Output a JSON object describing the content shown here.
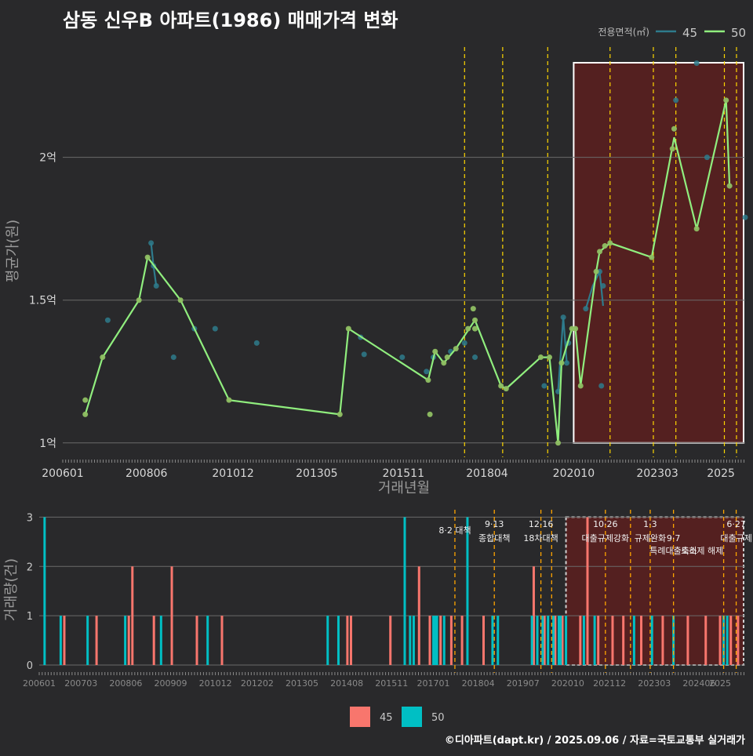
{
  "title": "삼동 신우B 아파트(1986) 매매가격 변화",
  "footer": "©디아파트(dapt.kr) / 2025.09.06 / 자료=국토교통부 실거래가",
  "colors": {
    "s45_price": "#2e7b8c",
    "s50_price": "#90ee7e",
    "s45_vol": "#f8766d",
    "s50_vol": "#00bfc4",
    "policy_line": "#ffd700",
    "policy_line_bottom": "#ffa500",
    "highlight_fill": "#5c1f1f",
    "grid": "#6a6a6a"
  },
  "chart_data": [
    {
      "type": "line",
      "id": "price",
      "ylabel": "평균가(원)",
      "xlabel": "거래년월",
      "x_ticks": [
        "200601",
        "200806",
        "201012",
        "201305",
        "201511",
        "201804",
        "202010",
        "202303",
        "2025"
      ],
      "y_ticks": [
        {
          "value": 1.0,
          "label": "1억"
        },
        {
          "value": 1.5,
          "label": "1.5억"
        },
        {
          "value": 2.0,
          "label": "2억"
        }
      ],
      "ylim": [
        0.95,
        2.4
      ],
      "xlim": [
        2006.0,
        2025.7
      ],
      "legend": {
        "title": "전용면적(㎡)",
        "placement": "top-right",
        "entries": [
          "45",
          "50"
        ]
      },
      "highlight_range": [
        2020.75,
        2025.7
      ],
      "policy_lines": [
        2017.6,
        2018.7,
        2020.0,
        2021.8,
        2023.05,
        2023.7,
        2025.1,
        2025.45
      ],
      "series": [
        {
          "name": "45",
          "points": [
            [
              2008.55,
              1.7
            ],
            [
              2008.62,
              1.62
            ],
            [
              2008.7,
              1.55
            ],
            [
              2007.3,
              1.43
            ],
            [
              2009.8,
              1.4
            ],
            [
              2009.2,
              1.3
            ],
            [
              2010.4,
              1.4
            ],
            [
              2011.6,
              1.35
            ],
            [
              2014.6,
              1.37
            ],
            [
              2014.7,
              1.31
            ],
            [
              2016.5,
              1.25
            ],
            [
              2015.8,
              1.3
            ],
            [
              2016.7,
              1.3
            ],
            [
              2017.2,
              1.32
            ],
            [
              2017.6,
              1.35
            ],
            [
              2017.9,
              1.3
            ],
            [
              2019.9,
              1.2
            ],
            [
              2020.3,
              1.18
            ],
            [
              2020.45,
              1.44
            ],
            [
              2020.55,
              1.28
            ],
            [
              2020.6,
              1.35
            ],
            [
              2021.1,
              1.47
            ],
            [
              2021.5,
              1.6
            ],
            [
              2021.6,
              1.55
            ],
            [
              2021.55,
              1.2
            ],
            [
              2023.7,
              2.2
            ],
            [
              2024.3,
              2.33
            ],
            [
              2025.7,
              1.79
            ],
            [
              2024.6,
              2.0
            ]
          ],
          "line": [
            [
              2008.55,
              1.7
            ],
            [
              2008.62,
              1.62
            ],
            [
              2008.7,
              1.55
            ]
          ],
          "line2": [
            [
              2020.3,
              1.18
            ],
            [
              2020.45,
              1.44
            ],
            [
              2020.55,
              1.28
            ]
          ],
          "line3": [
            [
              2021.1,
              1.47
            ],
            [
              2021.3,
              1.55
            ],
            [
              2021.5,
              1.6
            ],
            [
              2021.6,
              1.48
            ]
          ]
        },
        {
          "name": "50",
          "points": [
            [
              2006.65,
              1.1
            ],
            [
              2006.65,
              1.15
            ],
            [
              2007.15,
              1.3
            ],
            [
              2008.2,
              1.5
            ],
            [
              2008.45,
              1.65
            ],
            [
              2009.4,
              1.5
            ],
            [
              2010.8,
              1.15
            ],
            [
              2014.0,
              1.1
            ],
            [
              2014.25,
              1.4
            ],
            [
              2016.55,
              1.22
            ],
            [
              2016.75,
              1.32
            ],
            [
              2017.0,
              1.28
            ],
            [
              2017.1,
              1.3
            ],
            [
              2017.35,
              1.33
            ],
            [
              2017.7,
              1.4
            ],
            [
              2017.85,
              1.47
            ],
            [
              2017.9,
              1.43
            ],
            [
              2017.9,
              1.4
            ],
            [
              2018.65,
              1.2
            ],
            [
              2018.8,
              1.19
            ],
            [
              2019.8,
              1.3
            ],
            [
              2020.05,
              1.3
            ],
            [
              2020.3,
              1.0
            ],
            [
              2020.4,
              1.28
            ],
            [
              2020.7,
              1.4
            ],
            [
              2020.8,
              1.4
            ],
            [
              2020.95,
              1.2
            ],
            [
              2021.4,
              1.6
            ],
            [
              2021.5,
              1.67
            ],
            [
              2021.65,
              1.69
            ],
            [
              2021.8,
              1.7
            ],
            [
              2023.0,
              1.65
            ],
            [
              2023.65,
              2.1
            ],
            [
              2023.6,
              2.03
            ],
            [
              2024.3,
              1.75
            ],
            [
              2025.15,
              2.2
            ],
            [
              2025.25,
              1.9
            ],
            [
              2016.6,
              1.1
            ]
          ],
          "line": [
            [
              2006.65,
              1.1
            ],
            [
              2007.15,
              1.3
            ],
            [
              2008.2,
              1.5
            ],
            [
              2008.45,
              1.65
            ],
            [
              2009.4,
              1.5
            ],
            [
              2010.8,
              1.15
            ],
            [
              2014.0,
              1.1
            ],
            [
              2014.25,
              1.4
            ],
            [
              2016.55,
              1.22
            ],
            [
              2016.75,
              1.32
            ],
            [
              2017.0,
              1.28
            ],
            [
              2017.35,
              1.33
            ],
            [
              2017.9,
              1.43
            ],
            [
              2018.65,
              1.2
            ],
            [
              2018.8,
              1.19
            ],
            [
              2019.8,
              1.3
            ],
            [
              2020.05,
              1.3
            ],
            [
              2020.3,
              1.0
            ],
            [
              2020.4,
              1.28
            ],
            [
              2020.7,
              1.4
            ],
            [
              2020.8,
              1.4
            ],
            [
              2020.95,
              1.2
            ],
            [
              2021.4,
              1.6
            ],
            [
              2021.5,
              1.67
            ],
            [
              2021.8,
              1.7
            ],
            [
              2023.0,
              1.65
            ],
            [
              2023.65,
              2.07
            ],
            [
              2024.3,
              1.75
            ],
            [
              2025.15,
              2.2
            ],
            [
              2025.25,
              1.9
            ]
          ]
        }
      ]
    },
    {
      "type": "bar",
      "id": "volume",
      "ylabel": "거래량(건)",
      "x_ticks": [
        "200601",
        "200703",
        "200806",
        "200909",
        "201012",
        "201202",
        "201305",
        "201408",
        "201511",
        "201701",
        "201804",
        "201907",
        "202010",
        "202112",
        "202303",
        "202406",
        "2025"
      ],
      "y_ticks": [
        0,
        1,
        2,
        3
      ],
      "ylim": [
        0,
        3.15
      ],
      "xlim": [
        2006.0,
        2025.7
      ],
      "legend": {
        "placement": "bottom",
        "entries": [
          "45",
          "50"
        ]
      },
      "highlight_range": [
        2020.7,
        2025.7
      ],
      "policy_lines": [
        2017.6,
        2018.7,
        2020.0,
        2020.3,
        2021.8,
        2022.5,
        2023.05,
        2023.7,
        2025.1,
        2025.45
      ],
      "annotations": [
        {
          "x": 2017.6,
          "level": 0,
          "label": "8·2 대책"
        },
        {
          "x": 2018.7,
          "level": 1,
          "label": "9·13"
        },
        {
          "x": 2018.7,
          "level": 2,
          "label": "종합대책"
        },
        {
          "x": 2020.0,
          "level": 1,
          "label": "12·16"
        },
        {
          "x": 2020.0,
          "level": 2,
          "label": "18차대책"
        },
        {
          "x": 2021.8,
          "level": 1,
          "label": "10·26"
        },
        {
          "x": 2021.8,
          "level": 2,
          "label": "대출규제강화"
        },
        {
          "x": 2023.05,
          "level": 1,
          "label": "1·3"
        },
        {
          "x": 2023.05,
          "level": 2,
          "label": "규제완화"
        },
        {
          "x": 2023.7,
          "level": 2,
          "label": "9·7"
        },
        {
          "x": 2023.7,
          "level": 3,
          "label": "특례대출축소"
        },
        {
          "x": 2024.5,
          "level": 3,
          "label": "토허제 해제"
        },
        {
          "x": 2025.45,
          "level": 1,
          "label": "6·27"
        },
        {
          "x": 2025.45,
          "level": 2,
          "label": "대출규제"
        }
      ],
      "series": [
        {
          "name": "45",
          "bars": [
            [
              2006.7,
              1
            ],
            [
              2007.6,
              1
            ],
            [
              2008.5,
              1
            ],
            [
              2008.6,
              2
            ],
            [
              2009.2,
              1
            ],
            [
              2009.7,
              2
            ],
            [
              2010.4,
              1
            ],
            [
              2011.1,
              1
            ],
            [
              2014.6,
              1
            ],
            [
              2014.7,
              1
            ],
            [
              2015.8,
              1
            ],
            [
              2016.2,
              1
            ],
            [
              2016.6,
              2
            ],
            [
              2016.9,
              1
            ],
            [
              2017.2,
              1
            ],
            [
              2017.5,
              1
            ],
            [
              2017.8,
              1
            ],
            [
              2018.4,
              1
            ],
            [
              2019.8,
              2
            ],
            [
              2020.1,
              1
            ],
            [
              2020.4,
              1
            ],
            [
              2020.6,
              1
            ],
            [
              2021.1,
              1
            ],
            [
              2021.3,
              3
            ],
            [
              2021.6,
              1
            ],
            [
              2022.0,
              1
            ],
            [
              2022.3,
              1
            ],
            [
              2022.8,
              1
            ],
            [
              2023.4,
              1
            ],
            [
              2024.1,
              1
            ],
            [
              2024.6,
              1
            ],
            [
              2025.0,
              1
            ],
            [
              2025.3,
              1
            ],
            [
              2025.5,
              1
            ]
          ]
        },
        {
          "name": "50",
          "bars": [
            [
              2006.15,
              3
            ],
            [
              2006.6,
              1
            ],
            [
              2007.35,
              1
            ],
            [
              2008.4,
              1
            ],
            [
              2009.4,
              1
            ],
            [
              2010.7,
              1
            ],
            [
              2014.05,
              1
            ],
            [
              2014.35,
              1
            ],
            [
              2016.2,
              3
            ],
            [
              2016.35,
              1
            ],
            [
              2016.45,
              1
            ],
            [
              2017.0,
              1
            ],
            [
              2017.05,
              1
            ],
            [
              2017.1,
              1
            ],
            [
              2017.3,
              1
            ],
            [
              2017.95,
              3
            ],
            [
              2018.65,
              1
            ],
            [
              2018.8,
              1
            ],
            [
              2019.75,
              1
            ],
            [
              2019.9,
              1
            ],
            [
              2020.05,
              1
            ],
            [
              2020.2,
              1
            ],
            [
              2020.35,
              1
            ],
            [
              2020.5,
              1
            ],
            [
              2020.55,
              1
            ],
            [
              2020.7,
              1
            ],
            [
              2021.2,
              1
            ],
            [
              2021.5,
              1
            ],
            [
              2022.6,
              1
            ],
            [
              2023.1,
              1
            ],
            [
              2023.7,
              1
            ],
            [
              2025.1,
              1
            ],
            [
              2025.2,
              1
            ]
          ]
        }
      ]
    }
  ]
}
